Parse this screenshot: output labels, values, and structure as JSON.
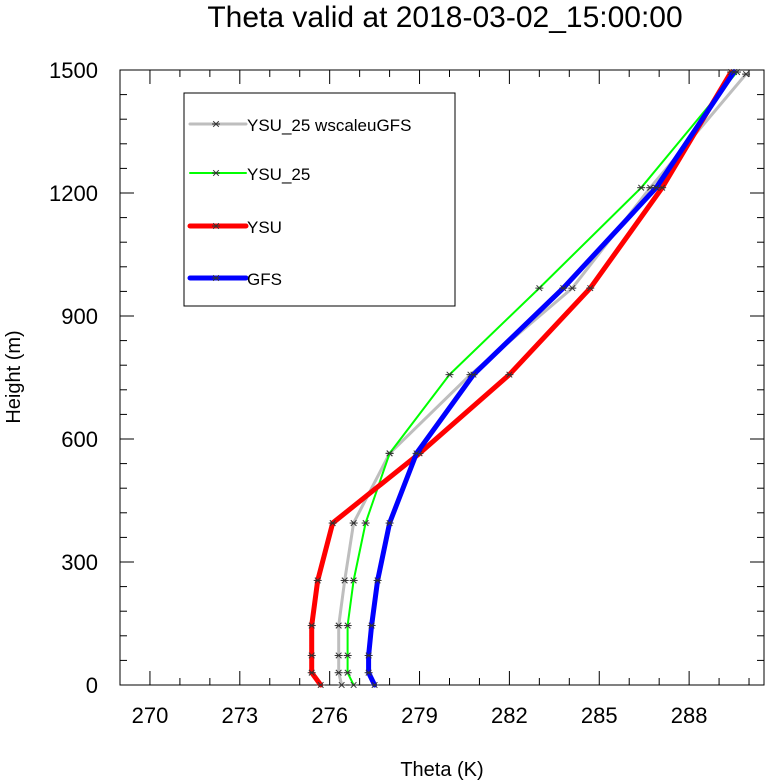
{
  "chart_data": {
    "type": "line",
    "title": "Theta valid at 2018-03-02_15:00:00",
    "xlabel": "Theta (K)",
    "ylabel": "Height (m)",
    "xlim": [
      269,
      290.5
    ],
    "ylim": [
      0,
      1500
    ],
    "xticks": [
      270,
      273,
      276,
      279,
      282,
      285,
      288
    ],
    "yticks": [
      0,
      300,
      600,
      900,
      1200,
      1500
    ],
    "grid": false,
    "legend_position": "top-left",
    "series": [
      {
        "name": "YSU_25 wscaleuGFS",
        "color": "#bebebe",
        "line_width": 3,
        "points": [
          [
            276.4,
            0
          ],
          [
            276.3,
            30
          ],
          [
            276.3,
            72
          ],
          [
            276.3,
            145
          ],
          [
            276.5,
            255
          ],
          [
            276.8,
            395
          ],
          [
            278.0,
            565
          ],
          [
            280.7,
            757
          ],
          [
            284.1,
            968
          ],
          [
            286.7,
            1213
          ],
          [
            289.9,
            1490
          ]
        ]
      },
      {
        "name": "YSU_25",
        "color": "#00ff00",
        "line_width": 2,
        "points": [
          [
            276.8,
            0
          ],
          [
            276.6,
            30
          ],
          [
            276.6,
            72
          ],
          [
            276.6,
            145
          ],
          [
            276.8,
            255
          ],
          [
            277.2,
            395
          ],
          [
            278.0,
            565
          ],
          [
            280.0,
            757
          ],
          [
            283.0,
            968
          ],
          [
            286.4,
            1213
          ],
          [
            289.6,
            1495
          ]
        ]
      },
      {
        "name": "YSU",
        "color": "#ff0000",
        "line_width": 5,
        "points": [
          [
            275.7,
            0
          ],
          [
            275.4,
            30
          ],
          [
            275.4,
            72
          ],
          [
            275.4,
            145
          ],
          [
            275.6,
            255
          ],
          [
            276.1,
            395
          ],
          [
            279.0,
            565
          ],
          [
            282.0,
            757
          ],
          [
            284.7,
            968
          ],
          [
            287.1,
            1213
          ],
          [
            289.4,
            1495
          ]
        ]
      },
      {
        "name": "GFS",
        "color": "#0000ff",
        "line_width": 5,
        "points": [
          [
            277.5,
            0
          ],
          [
            277.3,
            30
          ],
          [
            277.3,
            72
          ],
          [
            277.4,
            145
          ],
          [
            277.6,
            255
          ],
          [
            278.0,
            395
          ],
          [
            278.9,
            565
          ],
          [
            280.8,
            757
          ],
          [
            283.8,
            968
          ],
          [
            286.9,
            1213
          ],
          [
            289.5,
            1495
          ]
        ]
      }
    ]
  }
}
